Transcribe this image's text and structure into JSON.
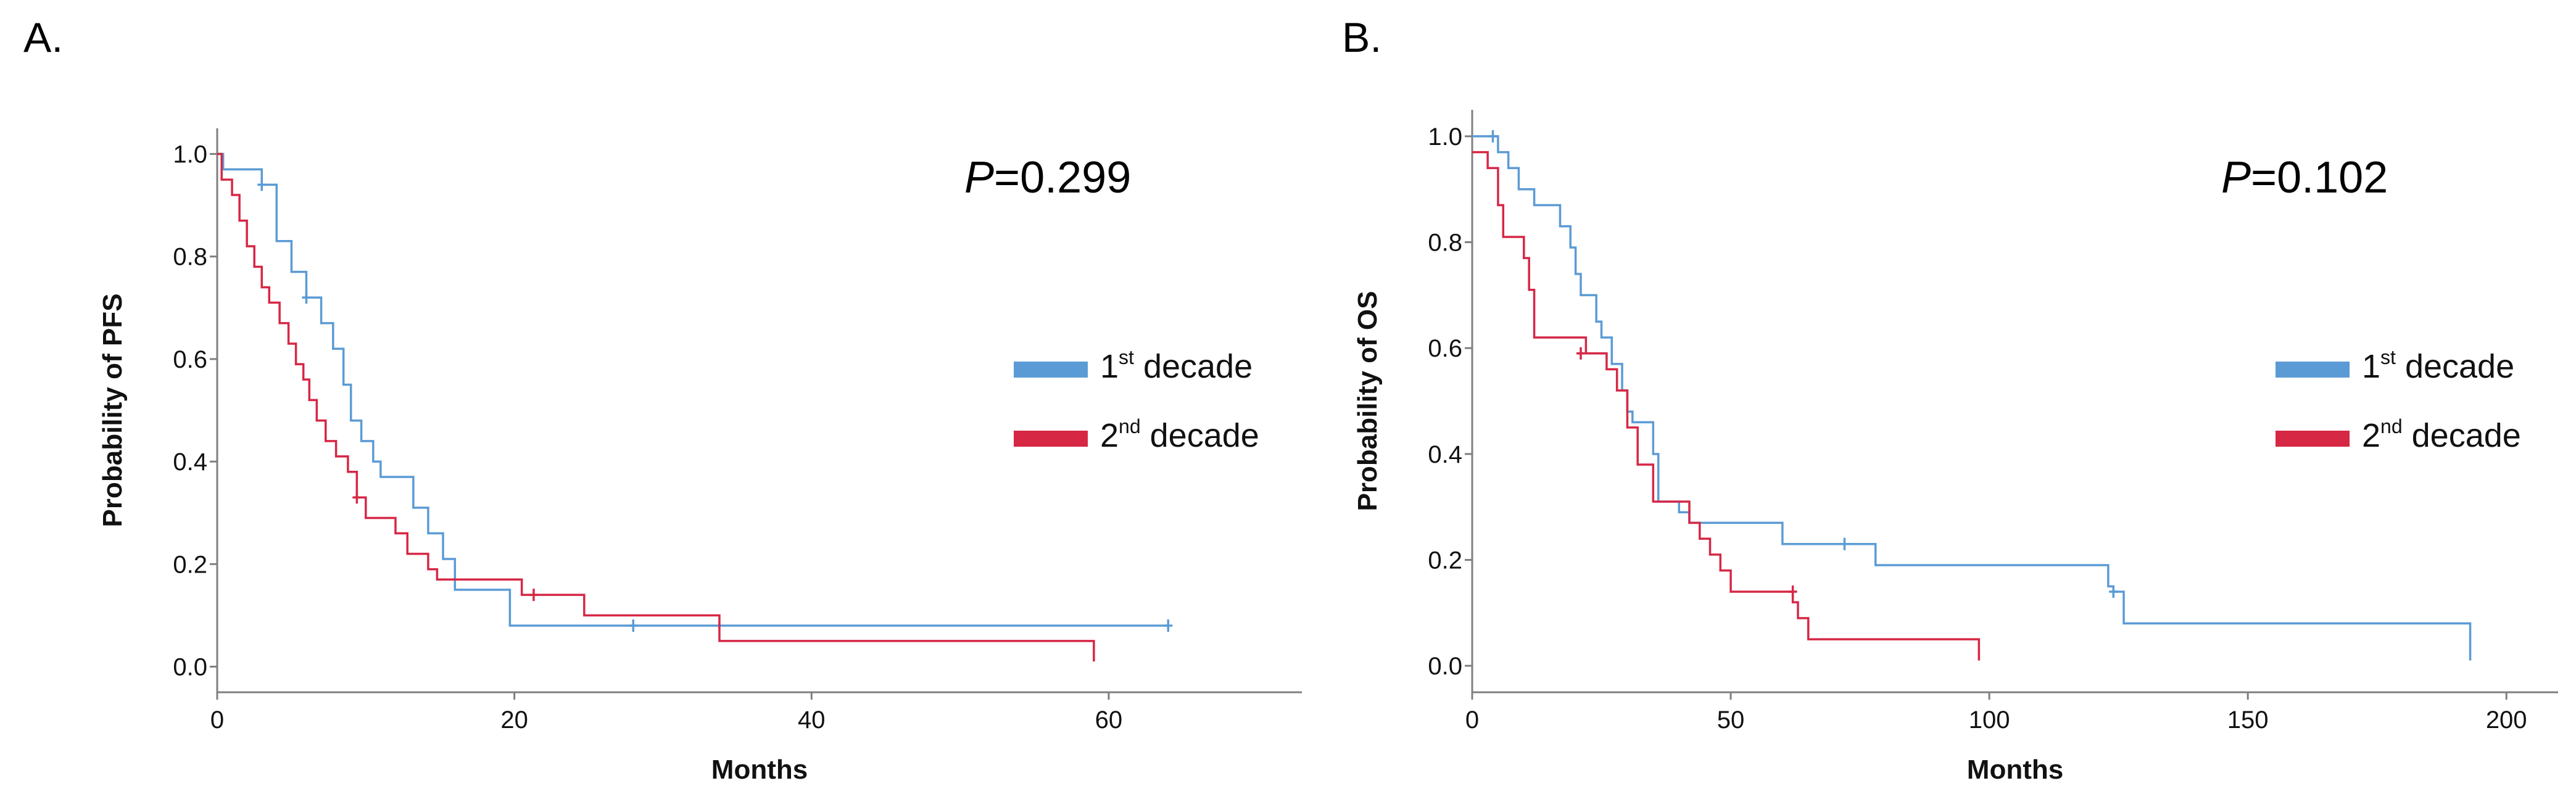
{
  "chart_data": [
    {
      "type": "line",
      "subtype": "kaplan-meier",
      "panel_label": "A.",
      "p_label": "P",
      "p_value": "=0.299",
      "xlabel": "Months",
      "ylabel": "Probability of PFS",
      "xlim": [
        0,
        73
      ],
      "ylim": [
        -0.05,
        1.05
      ],
      "xticks": [
        0,
        20,
        40,
        60
      ],
      "xtick_labels": [
        "0",
        "20",
        "40",
        "60"
      ],
      "yticks": [
        0.0,
        0.2,
        0.4,
        0.6,
        0.8,
        1.0
      ],
      "ytick_labels": [
        "0.0",
        "0.2",
        "0.4",
        "0.6",
        "0.8",
        "1.0"
      ],
      "legend_position": "right",
      "series": [
        {
          "name": "1st decade",
          "legend_main": "1",
          "legend_sup": "st",
          "legend_rest": " decade",
          "color": "#5b9bd5",
          "steps": [
            [
              0,
              1.0
            ],
            [
              0.4,
              0.97
            ],
            [
              3,
              0.94
            ],
            [
              4,
              0.83
            ],
            [
              5,
              0.77
            ],
            [
              6,
              0.72
            ],
            [
              7,
              0.67
            ],
            [
              7.8,
              0.62
            ],
            [
              8.5,
              0.55
            ],
            [
              9,
              0.48
            ],
            [
              9.7,
              0.44
            ],
            [
              10.5,
              0.4
            ],
            [
              11,
              0.37
            ],
            [
              13.2,
              0.31
            ],
            [
              14.2,
              0.26
            ],
            [
              15.2,
              0.21
            ],
            [
              16,
              0.15
            ],
            [
              19.7,
              0.08
            ],
            [
              64,
              0.08
            ]
          ],
          "end": 64,
          "censored": [
            [
              3,
              0.94
            ],
            [
              6,
              0.72
            ],
            [
              28,
              0.08
            ],
            [
              64,
              0.08
            ]
          ]
        },
        {
          "name": "2nd decade",
          "legend_main": "2",
          "legend_sup": "nd",
          "legend_rest": " decade",
          "color": "#d62745",
          "steps": [
            [
              0,
              1.0
            ],
            [
              0.3,
              0.95
            ],
            [
              1,
              0.92
            ],
            [
              1.5,
              0.87
            ],
            [
              2,
              0.82
            ],
            [
              2.5,
              0.78
            ],
            [
              3,
              0.74
            ],
            [
              3.5,
              0.71
            ],
            [
              4.2,
              0.67
            ],
            [
              4.8,
              0.63
            ],
            [
              5.3,
              0.59
            ],
            [
              5.8,
              0.56
            ],
            [
              6.2,
              0.52
            ],
            [
              6.7,
              0.48
            ],
            [
              7.3,
              0.44
            ],
            [
              8,
              0.41
            ],
            [
              8.8,
              0.38
            ],
            [
              9.4,
              0.33
            ],
            [
              10,
              0.29
            ],
            [
              12,
              0.26
            ],
            [
              12.8,
              0.22
            ],
            [
              14.2,
              0.19
            ],
            [
              14.8,
              0.17
            ],
            [
              20.5,
              0.14
            ],
            [
              24.7,
              0.1
            ],
            [
              33.8,
              0.05
            ],
            [
              59,
              0.05
            ],
            [
              59,
              0.01
            ]
          ],
          "end": 59,
          "censored": [
            [
              9.4,
              0.33
            ],
            [
              21.3,
              0.14
            ]
          ]
        }
      ]
    },
    {
      "type": "line",
      "subtype": "kaplan-meier",
      "panel_label": "B.",
      "p_label": "P",
      "p_value": "=0.102",
      "xlabel": "Months",
      "ylabel": "Probability of OS",
      "xlim": [
        0,
        210
      ],
      "ylim": [
        -0.05,
        1.05
      ],
      "xticks": [
        0,
        50,
        100,
        150,
        200
      ],
      "xtick_labels": [
        "0",
        "50",
        "100",
        "150",
        "200"
      ],
      "yticks": [
        0.0,
        0.2,
        0.4,
        0.6,
        0.8,
        1.0
      ],
      "ytick_labels": [
        "0.0",
        "0.2",
        "0.4",
        "0.6",
        "0.8",
        "1.0"
      ],
      "legend_position": "right",
      "series": [
        {
          "name": "1st decade",
          "legend_main": "1",
          "legend_sup": "st",
          "legend_rest": " decade",
          "color": "#5b9bd5",
          "steps": [
            [
              0,
              1.0
            ],
            [
              5,
              0.97
            ],
            [
              7,
              0.94
            ],
            [
              9,
              0.9
            ],
            [
              12,
              0.87
            ],
            [
              17,
              0.83
            ],
            [
              19,
              0.79
            ],
            [
              20,
              0.74
            ],
            [
              21,
              0.7
            ],
            [
              24,
              0.65
            ],
            [
              25,
              0.62
            ],
            [
              27,
              0.57
            ],
            [
              29,
              0.52
            ],
            [
              30,
              0.48
            ],
            [
              31,
              0.46
            ],
            [
              35,
              0.4
            ],
            [
              36,
              0.31
            ],
            [
              40,
              0.29
            ],
            [
              42,
              0.27
            ],
            [
              60,
              0.23
            ],
            [
              78,
              0.19
            ],
            [
              123,
              0.15
            ],
            [
              124,
              0.14
            ],
            [
              126,
              0.08
            ],
            [
              193,
              0.08
            ],
            [
              193,
              0.01
            ]
          ],
          "end": 193,
          "censored": [
            [
              4,
              1.0
            ],
            [
              72,
              0.23
            ],
            [
              124,
              0.14
            ]
          ]
        },
        {
          "name": "2nd decade",
          "legend_main": "2",
          "legend_sup": "nd",
          "legend_rest": " decade",
          "color": "#d62745",
          "steps": [
            [
              0,
              0.97
            ],
            [
              3,
              0.94
            ],
            [
              5,
              0.87
            ],
            [
              6,
              0.81
            ],
            [
              10,
              0.77
            ],
            [
              11,
              0.71
            ],
            [
              12,
              0.62
            ],
            [
              22,
              0.59
            ],
            [
              26,
              0.56
            ],
            [
              28,
              0.52
            ],
            [
              30,
              0.45
            ],
            [
              32,
              0.38
            ],
            [
              35,
              0.31
            ],
            [
              42,
              0.27
            ],
            [
              44,
              0.24
            ],
            [
              46,
              0.21
            ],
            [
              48,
              0.18
            ],
            [
              50,
              0.14
            ],
            [
              62,
              0.12
            ],
            [
              63,
              0.09
            ],
            [
              65,
              0.05
            ],
            [
              98,
              0.05
            ],
            [
              98,
              0.01
            ]
          ],
          "end": 98,
          "censored": [
            [
              21,
              0.59
            ],
            [
              62,
              0.14
            ]
          ]
        }
      ]
    }
  ]
}
